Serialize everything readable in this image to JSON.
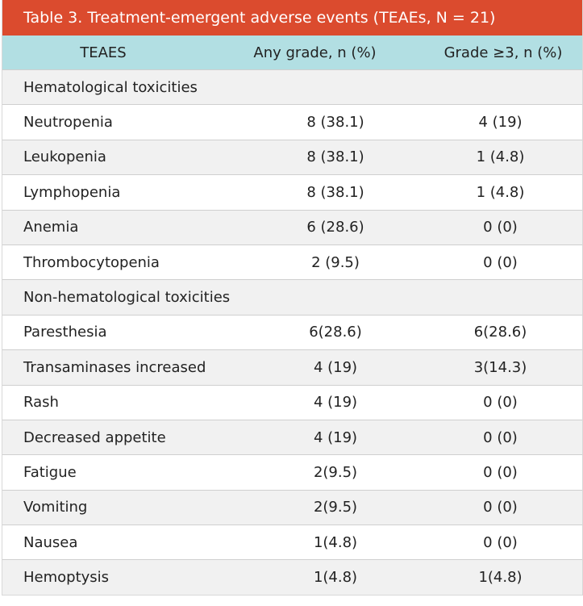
{
  "table": {
    "title": "Table 3. Treatment-emergent adverse events (TEAEs, N = 21)",
    "headers": [
      "TEAES",
      "Any grade, n (%)",
      "Grade ≥3, n (%)"
    ],
    "rows": [
      {
        "label": "Hematological toxicities",
        "any": "",
        "g3": "",
        "section": true
      },
      {
        "label": "Neutropenia",
        "any": "8 (38.1)",
        "g3": "4 (19)"
      },
      {
        "label": "Leukopenia",
        "any": "8 (38.1)",
        "g3": "1 (4.8)"
      },
      {
        "label": "Lymphopenia",
        "any": "8 (38.1)",
        "g3": "1 (4.8)"
      },
      {
        "label": "Anemia",
        "any": "6 (28.6)",
        "g3": "0 (0)"
      },
      {
        "label": "Thrombocytopenia",
        "any": "2 (9.5)",
        "g3": "0 (0)"
      },
      {
        "label": "Non-hematological toxicities",
        "any": "",
        "g3": "",
        "section": true
      },
      {
        "label": "Paresthesia",
        "any": "6(28.6)",
        "g3": "6(28.6)"
      },
      {
        "label": "Transaminases increased",
        "any": "4 (19)",
        "g3": "3(14.3)"
      },
      {
        "label": "Rash",
        "any": "4 (19)",
        "g3": "0 (0)"
      },
      {
        "label": "Decreased appetite",
        "any": "4 (19)",
        "g3": "0 (0)"
      },
      {
        "label": "Fatigue",
        "any": "2(9.5)",
        "g3": "0 (0)"
      },
      {
        "label": "Vomiting",
        "any": "2(9.5)",
        "g3": "0 (0)"
      },
      {
        "label": "Nausea",
        "any": "1(4.8)",
        "g3": "0 (0)"
      },
      {
        "label": "Hemoptysis",
        "any": "1(4.8)",
        "g3": "1(4.8)"
      }
    ]
  },
  "colors": {
    "title_bg": "#db4b2e",
    "header_bg": "#b2dfe3",
    "shaded_row": "#f1f1f1"
  }
}
